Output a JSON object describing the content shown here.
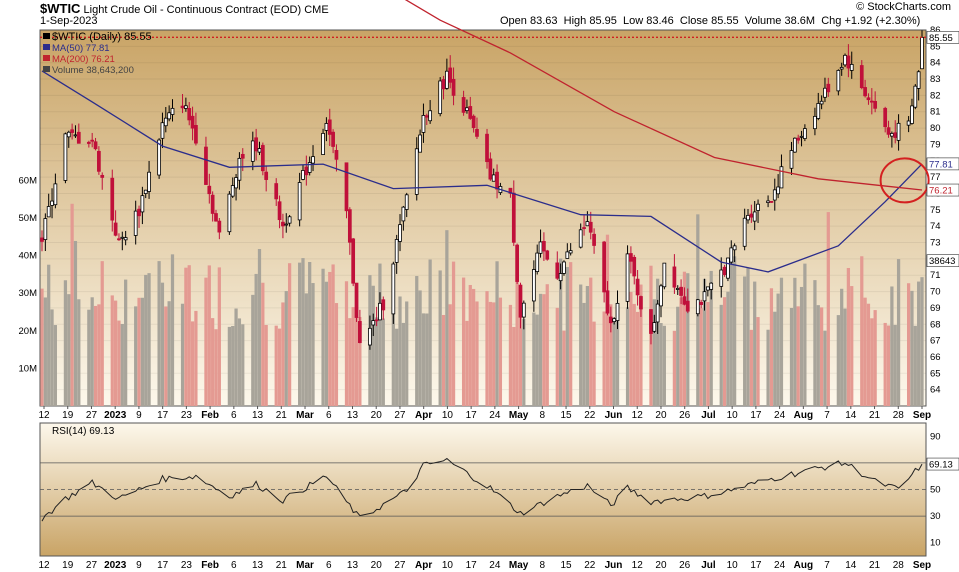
{
  "header": {
    "symbol": "$WTIC",
    "description": "Light Crude Oil - Continuous Contract (EOD)",
    "exchange": "CME",
    "date": "1-Sep-2023",
    "open_label": "Open",
    "open": "83.63",
    "high_label": "High",
    "high": "85.95",
    "low_label": "Low",
    "low": "83.46",
    "close_label": "Close",
    "close": "85.55",
    "volume_label": "Volume",
    "volume": "38.6M",
    "chg_label": "Chg",
    "chg": "+1.92 (+2.30%)",
    "copyright": "© StockCharts.com"
  },
  "legend": {
    "price": "$WTIC (Daily) 85.55",
    "ma50": "MA(50) 77.81",
    "ma200": "MA(200) 76.21",
    "volume": "Volume 38,643,200"
  },
  "rsi_legend": "RSI(14) 69.13",
  "colors": {
    "up": "#000000",
    "down": "#c0103a",
    "ma50": "#2b2d8c",
    "ma200": "#c0232e",
    "vol_up": "#a8a49a",
    "vol_down": "#e49a92",
    "circle": "#d42020",
    "bg_top": "#c9a466",
    "bg_bottom": "#fdf8ec",
    "rsi_line": "#222222"
  },
  "chart_data": [
    {
      "type": "candlestick",
      "title": "$WTIC (Daily) 85.55",
      "y_range": [
        63,
        86
      ],
      "y_ticks": [
        64,
        65,
        66,
        67,
        68,
        69,
        70,
        71,
        72,
        73,
        74,
        75,
        76,
        77,
        78,
        79,
        80,
        81,
        82,
        83,
        84,
        85,
        86
      ],
      "x_tick_labels": [
        "12",
        "19",
        "27",
        "2023",
        "9",
        "17",
        "23",
        "Feb",
        "6",
        "13",
        "21",
        "Mar",
        "6",
        "13",
        "20",
        "27",
        "Apr",
        "10",
        "17",
        "24",
        "May",
        "8",
        "15",
        "22",
        "Jun",
        "12",
        "20",
        "26",
        "Jul",
        "10",
        "17",
        "24",
        "Aug",
        "7",
        "14",
        "21",
        "28",
        "Sep"
      ],
      "close_keypoints": [
        {
          "date": "2022-12-12",
          "close": 73.2
        },
        {
          "date": "2022-12-19",
          "close": 79.5
        },
        {
          "date": "2022-12-27",
          "close": 79.3
        },
        {
          "date": "2023-01-04",
          "close": 72.9
        },
        {
          "date": "2023-01-10",
          "close": 75.0
        },
        {
          "date": "2023-01-17",
          "close": 80.2
        },
        {
          "date": "2023-01-23",
          "close": 81.6
        },
        {
          "date": "2023-01-27",
          "close": 79.5
        },
        {
          "date": "2023-02-03",
          "close": 73.4
        },
        {
          "date": "2023-02-09",
          "close": 78.2
        },
        {
          "date": "2023-02-14",
          "close": 79.0
        },
        {
          "date": "2023-02-22",
          "close": 74.0
        },
        {
          "date": "2023-02-28",
          "close": 77.0
        },
        {
          "date": "2023-03-07",
          "close": 80.5
        },
        {
          "date": "2023-03-13",
          "close": 74.8
        },
        {
          "date": "2023-03-17",
          "close": 66.7
        },
        {
          "date": "2023-03-20",
          "close": 67.6
        },
        {
          "date": "2023-03-24",
          "close": 69.3
        },
        {
          "date": "2023-03-31",
          "close": 75.7
        },
        {
          "date": "2023-04-05",
          "close": 80.7
        },
        {
          "date": "2023-04-12",
          "close": 83.2
        },
        {
          "date": "2023-04-18",
          "close": 80.9
        },
        {
          "date": "2023-04-25",
          "close": 77.0
        },
        {
          "date": "2023-05-01",
          "close": 75.7
        },
        {
          "date": "2023-05-04",
          "close": 68.6
        },
        {
          "date": "2023-05-10",
          "close": 72.6
        },
        {
          "date": "2023-05-15",
          "close": 71.1
        },
        {
          "date": "2023-05-24",
          "close": 74.3
        },
        {
          "date": "2023-05-31",
          "close": 67.9
        },
        {
          "date": "2023-06-05",
          "close": 72.2
        },
        {
          "date": "2023-06-12",
          "close": 67.1
        },
        {
          "date": "2023-06-16",
          "close": 71.8
        },
        {
          "date": "2023-06-23",
          "close": 69.2
        },
        {
          "date": "2023-06-28",
          "close": 69.6
        },
        {
          "date": "2023-07-05",
          "close": 71.8
        },
        {
          "date": "2023-07-11",
          "close": 74.8
        },
        {
          "date": "2023-07-18",
          "close": 75.8
        },
        {
          "date": "2023-07-24",
          "close": 78.7
        },
        {
          "date": "2023-08-01",
          "close": 81.4
        },
        {
          "date": "2023-08-09",
          "close": 84.4
        },
        {
          "date": "2023-08-14",
          "close": 82.5
        },
        {
          "date": "2023-08-18",
          "close": 81.2
        },
        {
          "date": "2023-08-22",
          "close": 79.6
        },
        {
          "date": "2023-08-28",
          "close": 80.1
        },
        {
          "date": "2023-08-31",
          "close": 83.6
        },
        {
          "date": "2023-09-01",
          "close": 85.55
        }
      ],
      "last": {
        "open": 83.63,
        "high": 85.95,
        "low": 83.46,
        "close": 85.55
      },
      "series": [
        {
          "name": "MA(50)",
          "last": 77.81
        },
        {
          "name": "MA(200)",
          "last": 76.21
        }
      ],
      "ma50_keypoints": [
        {
          "date": "2022-12-12",
          "value": 83.5
        },
        {
          "date": "2022-12-27",
          "value": 81.6
        },
        {
          "date": "2023-01-17",
          "value": 78.9
        },
        {
          "date": "2023-02-06",
          "value": 77.6
        },
        {
          "date": "2023-03-06",
          "value": 77.8
        },
        {
          "date": "2023-03-27",
          "value": 76.3
        },
        {
          "date": "2023-04-24",
          "value": 76.5
        },
        {
          "date": "2023-05-22",
          "value": 74.7
        },
        {
          "date": "2023-06-12",
          "value": 74.6
        },
        {
          "date": "2023-07-03",
          "value": 71.8
        },
        {
          "date": "2023-07-17",
          "value": 71.2
        },
        {
          "date": "2023-08-07",
          "value": 72.8
        },
        {
          "date": "2023-08-21",
          "value": 75.5
        },
        {
          "date": "2023-09-01",
          "value": 77.81
        }
      ],
      "ma200_keypoints": [
        {
          "date": "2023-03-27",
          "value": 88.3
        },
        {
          "date": "2023-04-10",
          "value": 86.6
        },
        {
          "date": "2023-05-01",
          "value": 84.6
        },
        {
          "date": "2023-06-01",
          "value": 81.0
        },
        {
          "date": "2023-07-01",
          "value": 78.2
        },
        {
          "date": "2023-08-01",
          "value": 76.9
        },
        {
          "date": "2023-09-01",
          "value": 76.21
        }
      ],
      "volume": {
        "axis_labels": [
          "10M",
          "20M",
          "30M",
          "40M",
          "50M",
          "60M"
        ],
        "last": 38643200,
        "last_label": "38643",
        "typical_range": [
          20000000,
          40000000
        ],
        "peak": 57000000
      },
      "annotations": [
        {
          "type": "circle",
          "around": "MA(50)/MA(200) crossover",
          "date": "2023-08-28"
        }
      ],
      "current_price_line": 85.55
    },
    {
      "type": "line",
      "title": "RSI(14) 69.13",
      "y_range": [
        0,
        100
      ],
      "y_ticks": [
        10,
        30,
        50,
        70,
        90
      ],
      "reference_lines": [
        30,
        50,
        70
      ],
      "last": 69.13,
      "rsi_keypoints": [
        {
          "date": "2022-12-12",
          "value": 28
        },
        {
          "date": "2022-12-19",
          "value": 43
        },
        {
          "date": "2022-12-27",
          "value": 55
        },
        {
          "date": "2023-01-04",
          "value": 43
        },
        {
          "date": "2023-01-17",
          "value": 58
        },
        {
          "date": "2023-01-27",
          "value": 60
        },
        {
          "date": "2023-02-06",
          "value": 45
        },
        {
          "date": "2023-02-14",
          "value": 54
        },
        {
          "date": "2023-02-22",
          "value": 42
        },
        {
          "date": "2023-03-07",
          "value": 60
        },
        {
          "date": "2023-03-17",
          "value": 28
        },
        {
          "date": "2023-03-31",
          "value": 49
        },
        {
          "date": "2023-04-05",
          "value": 68
        },
        {
          "date": "2023-04-12",
          "value": 72
        },
        {
          "date": "2023-04-25",
          "value": 51
        },
        {
          "date": "2023-05-04",
          "value": 32
        },
        {
          "date": "2023-05-15",
          "value": 45
        },
        {
          "date": "2023-05-24",
          "value": 53
        },
        {
          "date": "2023-05-31",
          "value": 38
        },
        {
          "date": "2023-06-05",
          "value": 51
        },
        {
          "date": "2023-06-12",
          "value": 41
        },
        {
          "date": "2023-06-28",
          "value": 45
        },
        {
          "date": "2023-07-05",
          "value": 49
        },
        {
          "date": "2023-07-18",
          "value": 58
        },
        {
          "date": "2023-08-01",
          "value": 66
        },
        {
          "date": "2023-08-09",
          "value": 70
        },
        {
          "date": "2023-08-18",
          "value": 56
        },
        {
          "date": "2023-08-25",
          "value": 50
        },
        {
          "date": "2023-09-01",
          "value": 69.13
        }
      ]
    }
  ]
}
